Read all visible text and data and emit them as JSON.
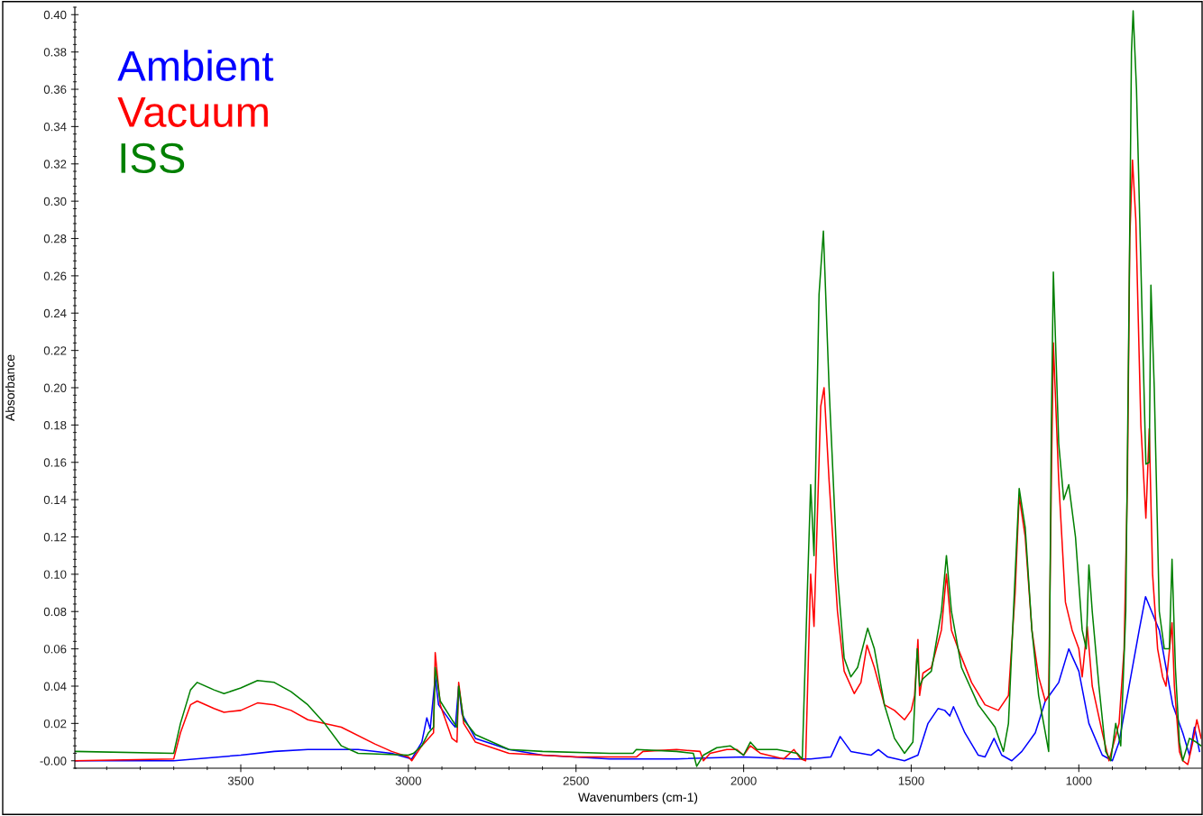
{
  "chart_data": {
    "type": "line",
    "xlabel": "Wavenumbers (cm-1)",
    "ylabel": "Absorbance",
    "xlim": [
      3995,
      635
    ],
    "ylim": [
      -0.004,
      0.404
    ],
    "xticks": [
      3500,
      3000,
      2500,
      2000,
      1500,
      1000
    ],
    "yticks": [
      {
        "value": 0,
        "label": "-0.00"
      },
      {
        "value": 0.02,
        "label": "0.02"
      },
      {
        "value": 0.04,
        "label": "0.04"
      },
      {
        "value": 0.06,
        "label": "0.06"
      },
      {
        "value": 0.08,
        "label": "0.08"
      },
      {
        "value": 0.1,
        "label": "0.10"
      },
      {
        "value": 0.12,
        "label": "0.12"
      },
      {
        "value": 0.14,
        "label": "0.14"
      },
      {
        "value": 0.16,
        "label": "0.16"
      },
      {
        "value": 0.18,
        "label": "0.18"
      },
      {
        "value": 0.2,
        "label": "0.20"
      },
      {
        "value": 0.22,
        "label": "0.22"
      },
      {
        "value": 0.24,
        "label": "0.24"
      },
      {
        "value": 0.26,
        "label": "0.26"
      },
      {
        "value": 0.28,
        "label": "0.28"
      },
      {
        "value": 0.3,
        "label": "0.30"
      },
      {
        "value": 0.32,
        "label": "0.32"
      },
      {
        "value": 0.34,
        "label": "0.34"
      },
      {
        "value": 0.36,
        "label": "0.36"
      },
      {
        "value": 0.38,
        "label": "0.38"
      },
      {
        "value": 0.4,
        "label": "0.40"
      }
    ],
    "grid": false,
    "legend": "top left",
    "marker": "none",
    "line_style": "solid",
    "series": [
      {
        "name": "Ambient",
        "color": "#0000ff",
        "x": [
          3995,
          3700,
          3500,
          3400,
          3300,
          3150,
          3050,
          2990,
          2960,
          2945,
          2935,
          2920,
          2910,
          2870,
          2860,
          2850,
          2840,
          2800,
          2700,
          2600,
          2400,
          2200,
          2000,
          1850,
          1800,
          1740,
          1712,
          1680,
          1620,
          1598,
          1570,
          1520,
          1480,
          1450,
          1420,
          1400,
          1385,
          1374,
          1340,
          1300,
          1280,
          1253,
          1230,
          1200,
          1170,
          1130,
          1100,
          1060,
          1030,
          1000,
          970,
          930,
          900,
          880,
          850,
          820,
          801,
          760,
          720,
          690,
          670,
          655,
          640
        ],
        "values": [
          0.0,
          0.0,
          0.003,
          0.005,
          0.006,
          0.006,
          0.004,
          0.001,
          0.01,
          0.023,
          0.017,
          0.045,
          0.03,
          0.02,
          0.018,
          0.04,
          0.025,
          0.012,
          0.006,
          0.003,
          0.001,
          0.001,
          0.002,
          0.001,
          0.001,
          0.002,
          0.013,
          0.005,
          0.003,
          0.006,
          0.002,
          0.0,
          0.003,
          0.02,
          0.028,
          0.027,
          0.024,
          0.029,
          0.015,
          0.003,
          0.002,
          0.012,
          0.003,
          0.0,
          0.005,
          0.015,
          0.032,
          0.042,
          0.06,
          0.048,
          0.02,
          0.003,
          0.0,
          0.01,
          0.04,
          0.07,
          0.088,
          0.07,
          0.03,
          0.015,
          0.003,
          0.018,
          0.005
        ]
      },
      {
        "name": "Vacuum",
        "color": "#ff0000",
        "x": [
          3995,
          3700,
          3680,
          3650,
          3630,
          3580,
          3550,
          3500,
          3450,
          3400,
          3350,
          3300,
          3200,
          3100,
          3050,
          3000,
          2990,
          2960,
          2940,
          2925,
          2920,
          2905,
          2870,
          2855,
          2850,
          2835,
          2800,
          2700,
          2600,
          2500,
          2320,
          2300,
          2200,
          2130,
          2120,
          2100,
          2050,
          2020,
          2000,
          1980,
          1950,
          1880,
          1850,
          1830,
          1815,
          1800,
          1790,
          1770,
          1760,
          1745,
          1720,
          1700,
          1670,
          1650,
          1632,
          1610,
          1580,
          1550,
          1520,
          1500,
          1490,
          1480,
          1475,
          1465,
          1440,
          1410,
          1395,
          1380,
          1360,
          1320,
          1280,
          1240,
          1210,
          1190,
          1178,
          1160,
          1140,
          1120,
          1100,
          1090,
          1082,
          1076,
          1060,
          1040,
          1020,
          1000,
          990,
          975,
          960,
          930,
          910,
          895,
          880,
          865,
          855,
          848,
          840,
          830,
          815,
          800,
          790,
          780,
          765,
          750,
          740,
          722,
          715,
          700,
          690,
          675,
          660,
          648,
          635
        ],
        "values": [
          0.0,
          0.001,
          0.015,
          0.03,
          0.032,
          0.028,
          0.026,
          0.027,
          0.031,
          0.03,
          0.027,
          0.022,
          0.018,
          0.009,
          0.005,
          0.002,
          0.0,
          0.008,
          0.012,
          0.015,
          0.058,
          0.03,
          0.012,
          0.01,
          0.042,
          0.02,
          0.01,
          0.004,
          0.003,
          0.002,
          0.002,
          0.005,
          0.006,
          0.005,
          0.0,
          0.004,
          0.006,
          0.006,
          0.003,
          0.008,
          0.004,
          0.001,
          0.006,
          0.001,
          0.0,
          0.1,
          0.072,
          0.19,
          0.2,
          0.15,
          0.08,
          0.048,
          0.036,
          0.042,
          0.062,
          0.05,
          0.03,
          0.027,
          0.022,
          0.027,
          0.035,
          0.065,
          0.035,
          0.047,
          0.05,
          0.07,
          0.1,
          0.07,
          0.06,
          0.042,
          0.03,
          0.027,
          0.035,
          0.09,
          0.142,
          0.12,
          0.07,
          0.045,
          0.032,
          0.035,
          0.15,
          0.224,
          0.15,
          0.085,
          0.07,
          0.06,
          0.045,
          0.072,
          0.04,
          0.015,
          0.0,
          0.01,
          0.02,
          0.06,
          0.15,
          0.28,
          0.322,
          0.29,
          0.18,
          0.13,
          0.178,
          0.1,
          0.06,
          0.045,
          0.04,
          0.074,
          0.04,
          0.005,
          0.0,
          -0.002,
          0.01,
          0.022,
          0.012
        ]
      },
      {
        "name": "ISS",
        "color": "#008000",
        "x": [
          3995,
          3700,
          3680,
          3650,
          3630,
          3580,
          3550,
          3500,
          3450,
          3400,
          3350,
          3300,
          3250,
          3200,
          3150,
          3000,
          2985,
          2960,
          2940,
          2925,
          2920,
          2905,
          2870,
          2855,
          2850,
          2835,
          2800,
          2700,
          2600,
          2400,
          2330,
          2320,
          2200,
          2150,
          2140,
          2120,
          2080,
          2040,
          2000,
          1980,
          1960,
          1900,
          1840,
          1825,
          1810,
          1800,
          1790,
          1775,
          1762,
          1745,
          1720,
          1700,
          1680,
          1660,
          1630,
          1610,
          1580,
          1550,
          1520,
          1495,
          1482,
          1475,
          1465,
          1440,
          1410,
          1395,
          1380,
          1350,
          1300,
          1250,
          1225,
          1210,
          1190,
          1178,
          1160,
          1140,
          1120,
          1100,
          1090,
          1082,
          1076,
          1060,
          1045,
          1030,
          1010,
          990,
          978,
          970,
          960,
          940,
          920,
          905,
          890,
          875,
          860,
          850,
          843,
          838,
          828,
          810,
          800,
          790,
          785,
          775,
          760,
          745,
          730,
          722,
          712,
          700,
          690,
          670,
          650,
          635
        ],
        "values": [
          0.005,
          0.004,
          0.02,
          0.038,
          0.042,
          0.038,
          0.036,
          0.039,
          0.043,
          0.042,
          0.037,
          0.03,
          0.02,
          0.008,
          0.004,
          0.003,
          0.004,
          0.008,
          0.015,
          0.018,
          0.05,
          0.032,
          0.022,
          0.018,
          0.04,
          0.022,
          0.014,
          0.006,
          0.005,
          0.004,
          0.004,
          0.006,
          0.005,
          0.004,
          -0.003,
          0.003,
          0.007,
          0.008,
          0.003,
          0.01,
          0.006,
          0.006,
          0.004,
          0.001,
          0.09,
          0.148,
          0.11,
          0.25,
          0.284,
          0.2,
          0.1,
          0.055,
          0.045,
          0.05,
          0.071,
          0.06,
          0.03,
          0.012,
          0.004,
          0.01,
          0.06,
          0.04,
          0.044,
          0.048,
          0.08,
          0.11,
          0.08,
          0.05,
          0.03,
          0.018,
          0.005,
          0.02,
          0.1,
          0.146,
          0.125,
          0.07,
          0.035,
          0.015,
          0.005,
          0.18,
          0.262,
          0.17,
          0.14,
          0.148,
          0.12,
          0.07,
          0.06,
          0.105,
          0.08,
          0.04,
          0.005,
          0.0,
          0.02,
          0.008,
          0.08,
          0.25,
          0.38,
          0.402,
          0.36,
          0.23,
          0.159,
          0.16,
          0.255,
          0.2,
          0.08,
          0.06,
          0.06,
          0.108,
          0.05,
          0.01,
          0.0,
          0.012,
          0.01,
          0.008
        ]
      }
    ]
  }
}
